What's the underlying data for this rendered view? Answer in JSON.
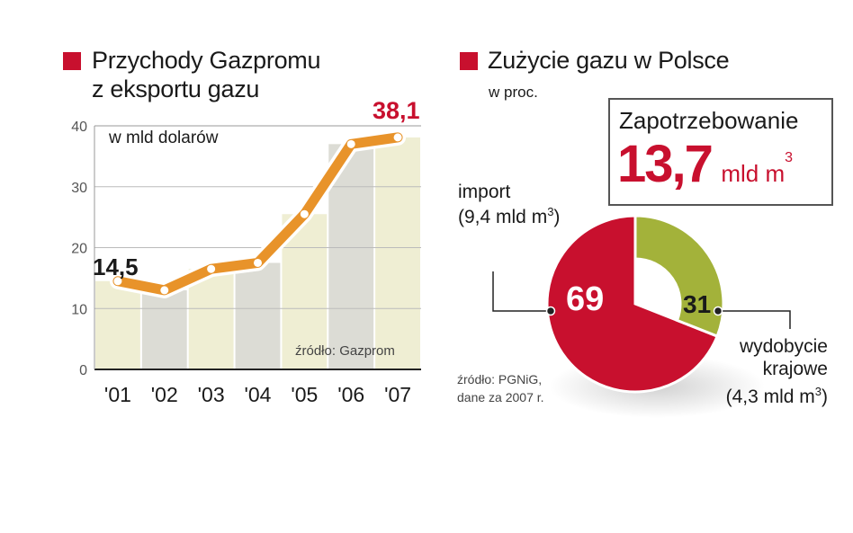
{
  "colors": {
    "accent_red": "#c8102e",
    "line_orange": "#e8932a",
    "bar_cream": "#efeed3",
    "bar_grey": "#dcdcd5",
    "pie_green": "#a3b23a",
    "text": "#1a1a1a"
  },
  "left": {
    "title_line1": "Przychody Gazpromu",
    "title_line2": "z eksportu gazu",
    "unit": "w mld dolarów",
    "source": "źródło: Gazprom",
    "first_label": "14,5",
    "last_label": "38,1",
    "y_ticks": [
      "0",
      "10",
      "20",
      "30",
      "40"
    ],
    "x_ticks": [
      "'01",
      "'02",
      "'03",
      "'04",
      "'05",
      "'06",
      "'07"
    ]
  },
  "right": {
    "title": "Zużycie gazu w Polsce",
    "unit": "w proc.",
    "box_label": "Zapotrzebowanie",
    "box_value": "13,7",
    "box_unit": "mld m",
    "box_unit_sup": "3",
    "import_label": "import",
    "import_amount": "(9,4 mld m",
    "import_sup": "3",
    "import_close": ")",
    "import_value": "69",
    "domestic_label1": "wydobycie",
    "domestic_label2": "krajowe",
    "domestic_amount": "(4,3 mld m",
    "domestic_sup": "3",
    "domestic_close": ")",
    "domestic_value": "31",
    "source1": "źródło: PGNiG,",
    "source2": "dane za 2007 r."
  },
  "chart_data": [
    {
      "type": "line",
      "title": "Przychody Gazpromu z eksportu gazu",
      "ylabel": "w mld dolarów",
      "xlabel": "",
      "categories": [
        "'01",
        "'02",
        "'03",
        "'04",
        "'05",
        "'06",
        "'07"
      ],
      "values": [
        14.5,
        13.0,
        16.5,
        17.5,
        25.5,
        37.0,
        38.1
      ],
      "ylim": [
        0,
        40
      ],
      "yticks": [
        0,
        10,
        20,
        30,
        40
      ],
      "grid": true,
      "annotations": [
        "14,5",
        "38,1"
      ],
      "source": "źródło: Gazprom"
    },
    {
      "type": "pie",
      "title": "Zużycie gazu w Polsce",
      "subtitle": "w proc.",
      "categories": [
        "import (9,4 mld m3)",
        "wydobycie krajowe (4,3 mld m3)"
      ],
      "values": [
        69,
        31
      ],
      "annotations": [
        "Zapotrzebowanie 13,7 mld m3"
      ],
      "source": "źródło: PGNiG, dane za 2007 r."
    }
  ]
}
